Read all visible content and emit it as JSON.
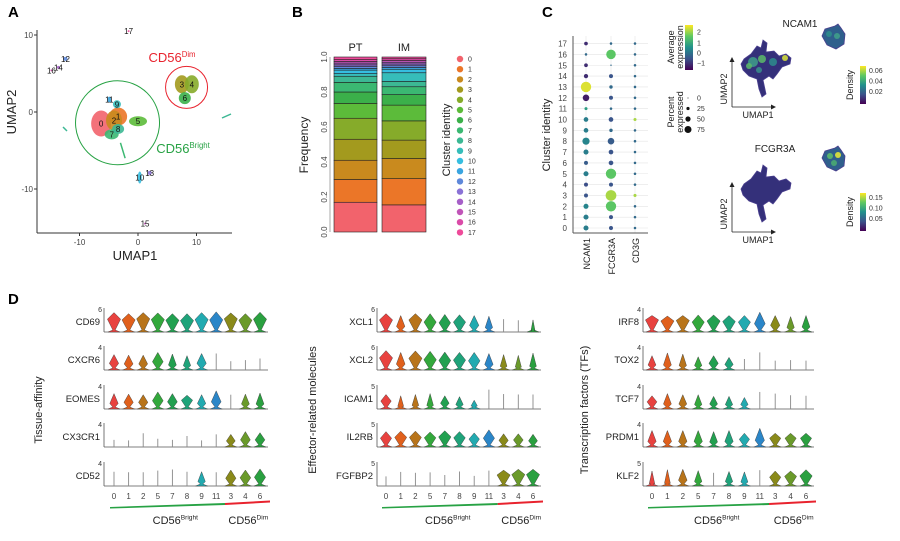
{
  "panels": {
    "a": "A",
    "b": "B",
    "c": "C",
    "d": "D"
  },
  "colors": {
    "clusters": [
      "#F2636C",
      "#EB7628",
      "#C98A1E",
      "#A39A1E",
      "#86AB2A",
      "#5CBB3A",
      "#3BB04A",
      "#3BB872",
      "#3CB894",
      "#36BDBA",
      "#36BEE0",
      "#3AA5E0",
      "#5E88DA",
      "#8A72D6",
      "#A65FC8",
      "#C054B8",
      "#DA4AA8",
      "#EE4A9A"
    ],
    "bright": "#27a244",
    "dim": "#e8232e"
  },
  "chart_data": [
    {
      "id": "umap",
      "type": "scatter",
      "xlabel": "UMAP1",
      "ylabel": "UMAP2",
      "xlim": [
        -16,
        15
      ],
      "ylim": [
        -15,
        11
      ],
      "xticks": [
        "-10",
        "0",
        "10"
      ],
      "yticks": [
        "-10",
        "0",
        "10"
      ],
      "grid": false,
      "clusters": [
        {
          "label": "0",
          "x": -6.3,
          "y": -1.5
        },
        {
          "label": "1",
          "x": -3.4,
          "y": -0.6
        },
        {
          "label": "2",
          "x": -4.1,
          "y": -1.1
        },
        {
          "label": "3",
          "x": 7.5,
          "y": 3.6
        },
        {
          "label": "4",
          "x": 9.2,
          "y": 3.6
        },
        {
          "label": "5",
          "x": 0,
          "y": -1.2
        },
        {
          "label": "6",
          "x": 8,
          "y": 1.8
        },
        {
          "label": "7",
          "x": -4.5,
          "y": -2.9
        },
        {
          "label": "8",
          "x": -3.4,
          "y": -2.2
        },
        {
          "label": "9",
          "x": -3.6,
          "y": 1
        },
        {
          "label": "10",
          "x": 0.3,
          "y": -8.5
        },
        {
          "label": "11",
          "x": -4.9,
          "y": 1.6
        },
        {
          "label": "12",
          "x": -12.4,
          "y": 6.9
        },
        {
          "label": "13",
          "x": 2,
          "y": -7.9
        },
        {
          "label": "14",
          "x": -13.6,
          "y": 5.8
        },
        {
          "label": "15",
          "x": 1.2,
          "y": -14.5
        },
        {
          "label": "16",
          "x": -14.8,
          "y": 5.4
        },
        {
          "label": "17",
          "x": -1.6,
          "y": 10.5
        }
      ],
      "annotations": [
        {
          "text": "CD56",
          "sup": "Dim",
          "group": "dim"
        },
        {
          "text": "CD56",
          "sup": "Bright",
          "group": "bright"
        }
      ]
    },
    {
      "id": "frequency",
      "type": "bar",
      "stacked": true,
      "categories": [
        "PT",
        "IM"
      ],
      "ylabel": "Frequency",
      "ylim": [
        0,
        1
      ],
      "yticks": [
        "0.0",
        "0.2",
        "0.4",
        "0.6",
        "0.8",
        "1.0"
      ],
      "legend_title": "Cluster identity",
      "legend_position": "right",
      "series": [
        {
          "name": "0",
          "values": [
            0.17,
            0.155
          ]
        },
        {
          "name": "1",
          "values": [
            0.13,
            0.15
          ]
        },
        {
          "name": "2",
          "values": [
            0.11,
            0.115
          ]
        },
        {
          "name": "3",
          "values": [
            0.12,
            0.105
          ]
        },
        {
          "name": "4",
          "values": [
            0.12,
            0.11
          ]
        },
        {
          "name": "5",
          "values": [
            0.085,
            0.09
          ]
        },
        {
          "name": "6",
          "values": [
            0.065,
            0.06
          ]
        },
        {
          "name": "7",
          "values": [
            0.055,
            0.045
          ]
        },
        {
          "name": "8",
          "values": [
            0.035,
            0.03
          ]
        },
        {
          "name": "9",
          "values": [
            0.015,
            0.05
          ]
        },
        {
          "name": "10",
          "values": [
            0.02,
            0.02
          ]
        },
        {
          "name": "11",
          "values": [
            0.01,
            0.01
          ]
        },
        {
          "name": "12",
          "values": [
            0.01,
            0.01
          ]
        },
        {
          "name": "13",
          "values": [
            0.01,
            0.01
          ]
        },
        {
          "name": "14",
          "values": [
            0.01,
            0.01
          ]
        },
        {
          "name": "15",
          "values": [
            0.01,
            0.01
          ]
        },
        {
          "name": "16",
          "values": [
            0.01,
            0.01
          ]
        },
        {
          "name": "17",
          "values": [
            0.015,
            0.01
          ]
        }
      ]
    },
    {
      "id": "dotplot",
      "type": "scatter",
      "ylabel": "Cluster identity",
      "yticks": [
        "0",
        "1",
        "2",
        "3",
        "4",
        "5",
        "6",
        "7",
        "8",
        "9",
        "10",
        "11",
        "12",
        "13",
        "14",
        "15",
        "16",
        "17"
      ],
      "genes": [
        "NCAM1",
        "FCGR3A",
        "CD3G"
      ],
      "percent_expressed": [
        [
          10,
          10,
          10,
          5,
          5,
          10,
          5,
          10,
          25,
          8,
          8,
          2,
          20,
          60,
          6,
          4,
          1,
          4
        ],
        [
          5,
          5,
          60,
          65,
          5,
          60,
          8,
          8,
          20,
          3,
          8,
          1,
          5,
          3,
          5,
          0,
          50,
          1
        ],
        [
          1,
          1,
          1,
          2,
          1,
          1,
          1,
          1,
          1,
          1,
          2,
          1,
          1,
          1,
          1,
          1,
          1,
          1
        ]
      ],
      "average_expression": [
        [
          0.3,
          0.3,
          0.4,
          -0.3,
          -0.4,
          0.3,
          -0.2,
          0.3,
          0.4,
          0.3,
          0.3,
          0.8,
          -1,
          2.3,
          -0.8,
          -0.8,
          0,
          -0.8
        ],
        [
          -0.3,
          -0.3,
          1.5,
          2,
          -0.3,
          1.5,
          -0.3,
          -0.3,
          -0.2,
          0,
          -0.3,
          0,
          -0.3,
          0,
          -0.3,
          0,
          1.5,
          0
        ],
        [
          0,
          0,
          0,
          2,
          0,
          0,
          0,
          0,
          0,
          0,
          2,
          0,
          0,
          0,
          0,
          0,
          0,
          0
        ]
      ],
      "color_legend": {
        "title_1": "Average",
        "title_2": "expression",
        "ticks": [
          "2",
          "1",
          "0",
          "−1"
        ],
        "range": [
          -1.3,
          2.5
        ]
      },
      "size_legend": {
        "title_1": "Percent",
        "title_2": "expressed",
        "ticks": [
          "0",
          "25",
          "50",
          "75"
        ]
      }
    },
    {
      "id": "density",
      "type": "heatmap",
      "xlabel": "UMAP1",
      "ylabel": "UMAP2",
      "maps": [
        {
          "title": "NCAM1",
          "legend_title": "Density",
          "ticks": [
            "0.06",
            "0.04",
            "0.02"
          ],
          "main_cluster_density": "high",
          "dim_cluster_density": "medium"
        },
        {
          "title": "FCGR3A",
          "legend_title": "Density",
          "ticks": [
            "0.15",
            "0.10",
            "0.05"
          ],
          "main_cluster_density": "low",
          "dim_cluster_density": "high"
        }
      ]
    },
    {
      "id": "violins",
      "type": "violin",
      "clusters": [
        "0",
        "1",
        "2",
        "5",
        "7",
        "8",
        "9",
        "11",
        "3",
        "4",
        "6"
      ],
      "cluster_colors": [
        "#E8423F",
        "#E0601C",
        "#B8741A",
        "#33A83C",
        "#22A050",
        "#1FA37A",
        "#22AAB0",
        "#2B86C8",
        "#8A8A1A",
        "#6A9A2A",
        "#2AA040"
      ],
      "group_labels": [
        {
          "text": "CD56",
          "sup": "Bright"
        },
        {
          "text": "CD56",
          "sup": "Dim"
        }
      ],
      "groups": [
        {
          "title": "Tissue-affinity",
          "genes": [
            {
              "name": "CD69",
              "ymax": "6",
              "body": [
                3.5,
                3.3,
                3.6,
                3.4,
                3.2,
                3.1,
                3.4,
                3.3,
                3.6,
                3.2,
                3.5
              ],
              "max": [
                5.3,
                5,
                5.3,
                5.2,
                5,
                5,
                5.3,
                5.5,
                5.2,
                5,
                5.4
              ]
            },
            {
              "name": "CXCR6",
              "ymax": "4",
              "body": [
                1.2,
                1.1,
                1.1,
                1.5,
                0.9,
                0.8,
                1.2,
                0,
                0,
                0,
                0
              ],
              "max": [
                2.8,
                2.7,
                2.7,
                3.2,
                2.9,
                2.6,
                3,
                3,
                1.6,
                1.8,
                2.1
              ]
            },
            {
              "name": "EOMES",
              "ymax": "4",
              "body": [
                1,
                1.2,
                1.2,
                1.5,
                1.3,
                1.6,
                1,
                1.3,
                0,
                0.9,
                0.9
              ],
              "max": [
                2.8,
                2.7,
                2.6,
                3.1,
                2.8,
                2.5,
                2.6,
                3.3,
                2.6,
                2.7,
                2.9
              ]
            },
            {
              "name": "CX3CR1",
              "ymax": "4",
              "body": [
                0,
                0,
                0,
                0,
                0,
                0,
                0,
                0,
                1.1,
                1.3,
                1.3
              ],
              "max": [
                1.3,
                1.2,
                2.5,
                1.5,
                1.3,
                2,
                1.2,
                2.3,
                2.3,
                2.8,
                2.6
              ]
            },
            {
              "name": "CD52",
              "ymax": "4",
              "body": [
                0,
                0,
                0,
                0,
                0,
                0,
                0.8,
                0,
                1.4,
                1.5,
                1.6
              ],
              "max": [
                2.6,
                2.5,
                2.5,
                2.8,
                3,
                2.6,
                2.6,
                2.5,
                2.9,
                2.9,
                3.1
              ]
            }
          ]
        },
        {
          "title": "Effector-related molecules",
          "genes": [
            {
              "name": "XCL1",
              "ymax": "6",
              "body": [
                3.3,
                1.5,
                3.3,
                2.7,
                2.5,
                2.7,
                1.8,
                1.2,
                0,
                0,
                0.2
              ],
              "max": [
                5,
                4.5,
                5,
                5,
                4.8,
                4.7,
                4.5,
                4.3,
                3.5,
                3.2,
                3.3
              ]
            },
            {
              "name": "XCL2",
              "ymax": "6",
              "body": [
                3.3,
                1.6,
                3.2,
                2.8,
                2.6,
                2.7,
                2.5,
                1.5,
                1,
                0.8,
                1
              ],
              "max": [
                5.3,
                4.8,
                5.2,
                5.1,
                4.9,
                4.8,
                4.8,
                4.5,
                4.2,
                4,
                4.6
              ]
            },
            {
              "name": "ICAM1",
              "ymax": "5",
              "body": [
                1.8,
                0.6,
                0.8,
                0.8,
                1.3,
                1,
                0.7,
                0,
                0,
                0,
                0
              ],
              "max": [
                3.3,
                3,
                3.3,
                3.5,
                3,
                2.8,
                2,
                4.4,
                3.4,
                3.3,
                3.3
              ]
            },
            {
              "name": "IL2RB",
              "ymax": "5",
              "body": [
                2,
                2.2,
                2.2,
                2.1,
                2.3,
                2.1,
                1.8,
                2,
                1.5,
                1.6,
                1.4
              ],
              "max": [
                3.5,
                3.6,
                3.6,
                3.4,
                3.7,
                3.5,
                3.2,
                3.9,
                3,
                3,
                2.9
              ]
            },
            {
              "name": "FGFBP2",
              "ymax": "5",
              "body": [
                0,
                0,
                0,
                0,
                0,
                0,
                0,
                0,
                2.5,
                2.6,
                2.6
              ],
              "max": [
                2.2,
                3.2,
                3,
                3.1,
                2.5,
                3.3,
                2.3,
                3.5,
                3.6,
                3.8,
                3.8
              ]
            }
          ]
        },
        {
          "title": "Transcription factors (TFs)",
          "genes": [
            {
              "name": "IRF8",
              "ymax": "4",
              "body": [
                2.2,
                2,
                2.1,
                1.8,
                2,
                1.9,
                1.8,
                1.5,
                1.2,
                0.8,
                0.9
              ],
              "max": [
                3,
                2.9,
                3,
                3.1,
                3.1,
                3,
                3,
                3.6,
                3,
                2.8,
                3
              ]
            },
            {
              "name": "TOX2",
              "ymax": "4",
              "body": [
                0.9,
                0.9,
                0.8,
                0.8,
                1.2,
                1,
                0,
                0,
                0,
                0,
                0
              ],
              "max": [
                2.6,
                3.1,
                2.9,
                2.4,
                2.6,
                2.3,
                2,
                3.2,
                1.7,
                1.8,
                1.7
              ]
            },
            {
              "name": "TCF7",
              "ymax": "4",
              "body": [
                1.3,
                0.9,
                0.9,
                0.8,
                0.9,
                0.8,
                0.8,
                0,
                0,
                0,
                0
              ],
              "max": [
                2.4,
                2.8,
                2.6,
                2.6,
                2.3,
                2.3,
                2.1,
                3.1,
                2.8,
                2.5,
                2.4
              ]
            },
            {
              "name": "PRDM1",
              "ymax": "4",
              "body": [
                1,
                1,
                1,
                1,
                0.9,
                1,
                1.4,
                1.2,
                1.6,
                1.6,
                1.6
              ],
              "max": [
                3,
                3,
                3,
                3,
                2.8,
                3,
                2.5,
                3.4,
                2.5,
                2.5,
                2.5
              ]
            },
            {
              "name": "KLF2",
              "ymax": "5",
              "body": [
                0.5,
                0.6,
                1.3,
                1,
                0,
                1,
                0.9,
                0,
                2,
                2.2,
                2.3
              ],
              "max": [
                3.4,
                3.7,
                3.8,
                3.5,
                3,
                3.3,
                3.2,
                3.6,
                3.4,
                3.4,
                3.7
              ]
            }
          ]
        }
      ]
    }
  ]
}
